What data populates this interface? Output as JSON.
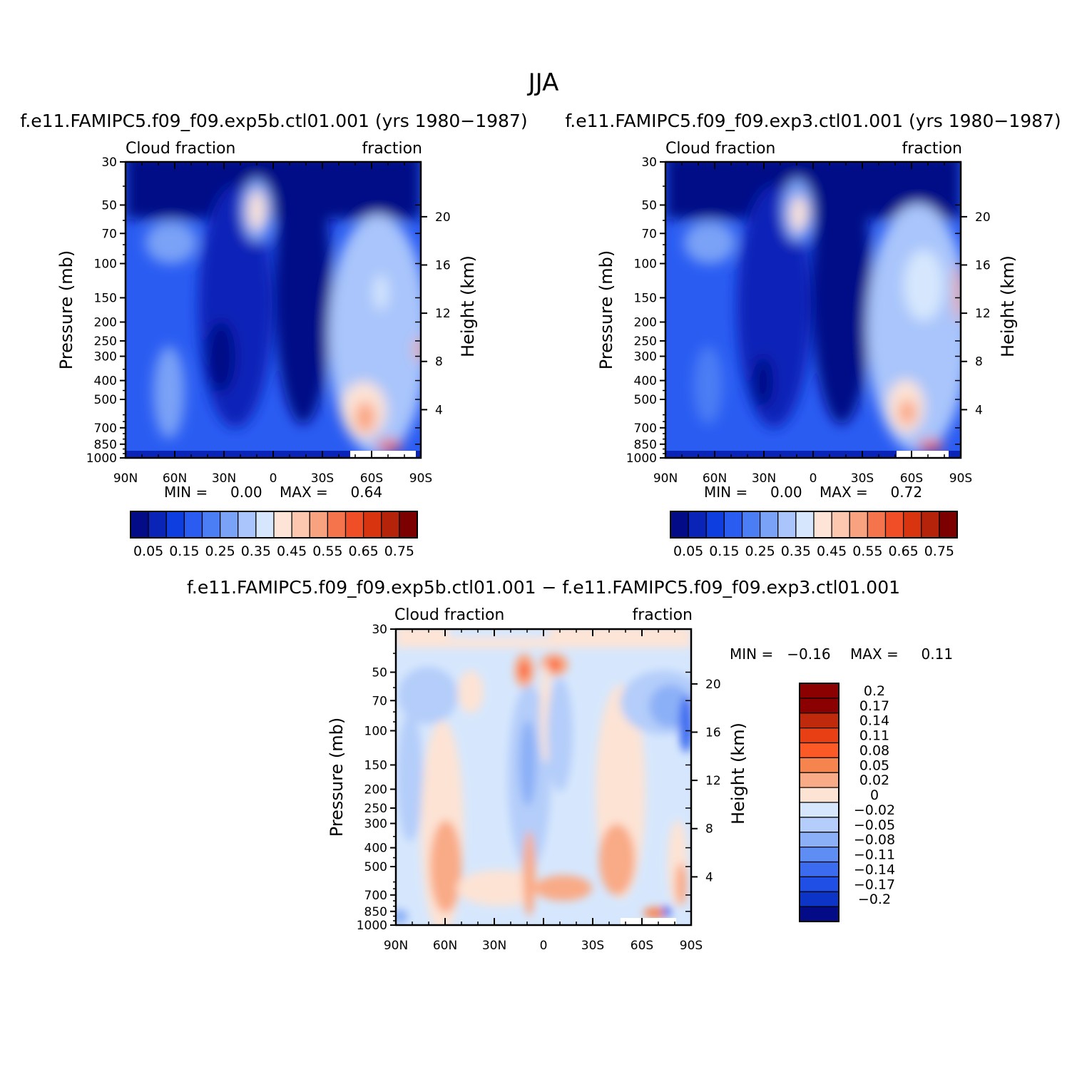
{
  "title": "JJA",
  "panels": [
    {
      "subtitle": "f.e11.FAMIPC5.f09_f09.exp5b.ctl01.001 (yrs 1980-1987)",
      "left_label": "Cloud fraction",
      "right_label": "fraction",
      "min_text": "MIN =     0.00",
      "max_text": "MAX =     0.64"
    },
    {
      "subtitle": "f.e11.FAMIPC5.f09_f09.exp3.ctl01.001 (yrs 1980-1987)",
      "left_label": "Cloud fraction",
      "right_label": "fraction",
      "min_text": "MIN =     0.00",
      "max_text": "MAX =     0.72"
    },
    {
      "subtitle": "f.e11.FAMIPC5.f09_f09.exp5b.ctl01.001 - f.e11.FAMIPC5.f09_f09.exp3.ctl01.001",
      "left_label": "Cloud fraction",
      "right_label": "fraction",
      "min_text": "MIN =   -0.16",
      "max_text": "MAX =     0.11"
    }
  ],
  "axes": {
    "ylabel": "Pressure (mb)",
    "y2label": "Height (km)",
    "pressure_ticks": [
      "30",
      "50",
      "70",
      "100",
      "150",
      "200",
      "250",
      "300",
      "400",
      "500",
      "700",
      "850",
      "1000"
    ],
    "height_ticks": [
      "20",
      "16",
      "12",
      "8",
      "4"
    ],
    "lat_ticks": [
      "90N",
      "60N",
      "30N",
      "0",
      "30S",
      "60S",
      "90S"
    ]
  },
  "colorbar_main": {
    "labels": [
      "0.05",
      "0.15",
      "0.25",
      "0.35",
      "0.45",
      "0.55",
      "0.65",
      "0.75"
    ],
    "colors": [
      "#040b86",
      "#0a24b8",
      "#0e3ee0",
      "#2a5cf2",
      "#4b7ef4",
      "#7aa2f6",
      "#a9c5fb",
      "#d6e7fd",
      "#fde4d6",
      "#fcc7ae",
      "#f9a27f",
      "#f6744c",
      "#f04e26",
      "#d93410",
      "#b5230a",
      "#7c0000"
    ]
  },
  "colorbar_diff": {
    "labels": [
      "0.2",
      "0.17",
      "0.14",
      "0.11",
      "0.08",
      "0.05",
      "0.02",
      "0",
      "-0.02",
      "-0.05",
      "-0.08",
      "-0.11",
      "-0.14",
      "-0.17",
      "-0.2"
    ],
    "colors": [
      "#8b0000",
      "#c02a0c",
      "#e83f15",
      "#fb5a27",
      "#f6844f",
      "#f9aa86",
      "#fde3d4",
      "#d6e7fd",
      "#b4cdfa",
      "#8cb0f7",
      "#5e8df4",
      "#3b6cf0",
      "#1f4fe4",
      "#0c34c6",
      "#040b86"
    ]
  },
  "chart_data": [
    {
      "type": "heatmap",
      "title": "f.e11.FAMIPC5.f09_f09.exp5b.ctl01.001 (yrs 1980-1987)",
      "field": "Cloud fraction",
      "units": "fraction",
      "season": "JJA",
      "xlabel": "",
      "ylabel": "Pressure (mb)",
      "y2label": "Height (km)",
      "x": [
        "90N",
        "60N",
        "30N",
        "0",
        "30S",
        "60S",
        "90S"
      ],
      "y": [
        30,
        50,
        70,
        100,
        150,
        200,
        250,
        300,
        400,
        500,
        700,
        850,
        1000
      ],
      "y_scale": "log",
      "min": 0.0,
      "max": 0.64,
      "levels": [
        0.05,
        0.1,
        0.15,
        0.2,
        0.25,
        0.3,
        0.35,
        0.4,
        0.45,
        0.5,
        0.55,
        0.6,
        0.65,
        0.7,
        0.75
      ]
    },
    {
      "type": "heatmap",
      "title": "f.e11.FAMIPC5.f09_f09.exp3.ctl01.001 (yrs 1980-1987)",
      "field": "Cloud fraction",
      "units": "fraction",
      "season": "JJA",
      "xlabel": "",
      "ylabel": "Pressure (mb)",
      "y2label": "Height (km)",
      "x": [
        "90N",
        "60N",
        "30N",
        "0",
        "30S",
        "60S",
        "90S"
      ],
      "y": [
        30,
        50,
        70,
        100,
        150,
        200,
        250,
        300,
        400,
        500,
        700,
        850,
        1000
      ],
      "y_scale": "log",
      "min": 0.0,
      "max": 0.72,
      "levels": [
        0.05,
        0.1,
        0.15,
        0.2,
        0.25,
        0.3,
        0.35,
        0.4,
        0.45,
        0.5,
        0.55,
        0.6,
        0.65,
        0.7,
        0.75
      ]
    },
    {
      "type": "heatmap",
      "title": "f.e11.FAMIPC5.f09_f09.exp5b.ctl01.001 - f.e11.FAMIPC5.f09_f09.exp3.ctl01.001",
      "field": "Cloud fraction",
      "units": "fraction",
      "season": "JJA",
      "xlabel": "",
      "ylabel": "Pressure (mb)",
      "y2label": "Height (km)",
      "x": [
        "90N",
        "60N",
        "30N",
        "0",
        "30S",
        "60S",
        "90S"
      ],
      "y": [
        30,
        50,
        70,
        100,
        150,
        200,
        250,
        300,
        400,
        500,
        700,
        850,
        1000
      ],
      "y_scale": "log",
      "min": -0.16,
      "max": 0.11,
      "levels": [
        -0.2,
        -0.17,
        -0.14,
        -0.11,
        -0.08,
        -0.05,
        -0.02,
        0,
        0.02,
        0.05,
        0.08,
        0.11,
        0.14,
        0.17,
        0.2
      ]
    }
  ]
}
